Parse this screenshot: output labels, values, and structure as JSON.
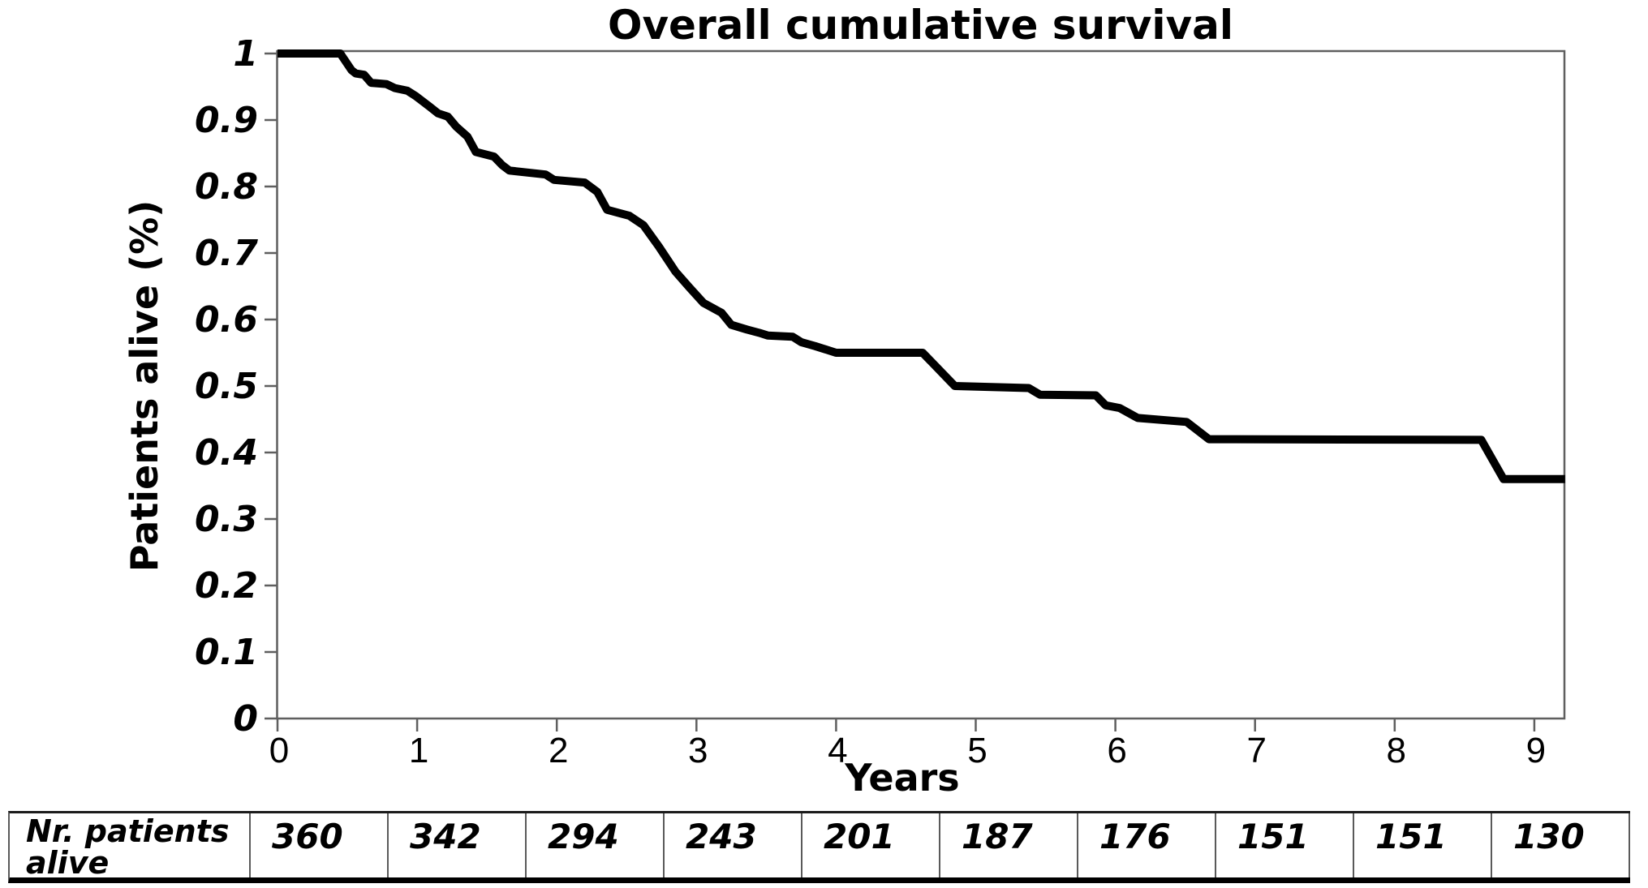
{
  "title": "Overall cumulative survival",
  "y_axis": {
    "title": "Patients alive (%)",
    "ticks": [
      {
        "label": "1",
        "value": 1.0
      },
      {
        "label": "0.9",
        "value": 0.9
      },
      {
        "label": "0.8",
        "value": 0.8
      },
      {
        "label": "0.7",
        "value": 0.7
      },
      {
        "label": "0.6",
        "value": 0.6
      },
      {
        "label": "0.5",
        "value": 0.5
      },
      {
        "label": "0.4",
        "value": 0.4
      },
      {
        "label": "0.3",
        "value": 0.3
      },
      {
        "label": "0.2",
        "value": 0.2
      },
      {
        "label": "0.1",
        "value": 0.1
      },
      {
        "label": "0",
        "value": 0.0
      }
    ]
  },
  "x_axis": {
    "title": "Years",
    "ticks": [
      {
        "label": "0",
        "value": 0
      },
      {
        "label": "1",
        "value": 1
      },
      {
        "label": "2",
        "value": 2
      },
      {
        "label": "3",
        "value": 3
      },
      {
        "label": "4",
        "value": 4
      },
      {
        "label": "5",
        "value": 5
      },
      {
        "label": "6",
        "value": 6
      },
      {
        "label": "7",
        "value": 7
      },
      {
        "label": "8",
        "value": 8
      },
      {
        "label": "9",
        "value": 9
      }
    ]
  },
  "chart_data": {
    "type": "line",
    "style": "kaplan-meier-step",
    "title": "Overall cumulative survival",
    "xlabel": "Years",
    "ylabel": "Patients alive (%)",
    "xlim": [
      0,
      9.25
    ],
    "ylim": [
      0,
      1
    ],
    "grid": false,
    "legend": "none",
    "line_color": "#000000",
    "axis_color": "#5f5f5f",
    "series": [
      {
        "name": "Overall cumulative survival",
        "points": [
          [
            0.0,
            1.0
          ],
          [
            0.45,
            1.0
          ],
          [
            0.53,
            0.975
          ],
          [
            0.56,
            0.97
          ],
          [
            0.62,
            0.968
          ],
          [
            0.67,
            0.956
          ],
          [
            0.78,
            0.954
          ],
          [
            0.84,
            0.948
          ],
          [
            0.93,
            0.944
          ],
          [
            0.99,
            0.936
          ],
          [
            1.09,
            0.92
          ],
          [
            1.15,
            0.91
          ],
          [
            1.22,
            0.905
          ],
          [
            1.28,
            0.89
          ],
          [
            1.36,
            0.875
          ],
          [
            1.42,
            0.852
          ],
          [
            1.55,
            0.845
          ],
          [
            1.61,
            0.832
          ],
          [
            1.66,
            0.824
          ],
          [
            1.92,
            0.818
          ],
          [
            1.98,
            0.81
          ],
          [
            2.2,
            0.806
          ],
          [
            2.29,
            0.792
          ],
          [
            2.36,
            0.765
          ],
          [
            2.52,
            0.756
          ],
          [
            2.62,
            0.742
          ],
          [
            2.73,
            0.71
          ],
          [
            2.85,
            0.672
          ],
          [
            2.95,
            0.648
          ],
          [
            3.05,
            0.625
          ],
          [
            3.12,
            0.617
          ],
          [
            3.18,
            0.61
          ],
          [
            3.25,
            0.592
          ],
          [
            3.36,
            0.585
          ],
          [
            3.45,
            0.58
          ],
          [
            3.51,
            0.576
          ],
          [
            3.69,
            0.574
          ],
          [
            3.75,
            0.566
          ],
          [
            3.85,
            0.56
          ],
          [
            4.0,
            0.55
          ],
          [
            4.62,
            0.55
          ],
          [
            4.85,
            0.5
          ],
          [
            5.38,
            0.497
          ],
          [
            5.46,
            0.487
          ],
          [
            5.86,
            0.486
          ],
          [
            5.93,
            0.471
          ],
          [
            6.03,
            0.467
          ],
          [
            6.16,
            0.452
          ],
          [
            6.51,
            0.446
          ],
          [
            6.67,
            0.42
          ],
          [
            8.62,
            0.419
          ],
          [
            8.78,
            0.36
          ],
          [
            9.22,
            0.36
          ]
        ]
      }
    ]
  },
  "risk_table": {
    "label": "Nr. patients alive",
    "label_lines": [
      "Nr. patients",
      "alive"
    ],
    "time_points_years": [
      0,
      1,
      2,
      3,
      4,
      5,
      6,
      7,
      8,
      9
    ],
    "values": [
      "360",
      "342",
      "294",
      "243",
      "201",
      "187",
      "176",
      "151",
      "151",
      "130"
    ]
  }
}
